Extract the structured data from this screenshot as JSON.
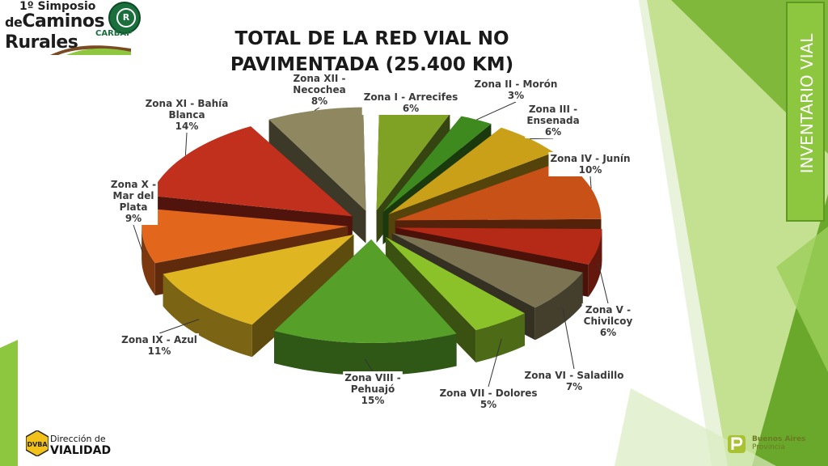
{
  "slide": {
    "event_logo": {
      "line1": "1º Simposio",
      "line2_prefix": "de",
      "line2_main": "Caminos",
      "line3": "Rurales",
      "badge_text": "CARBAP",
      "badge_mark": "R"
    },
    "side_tab": "INVENTARIO VIAL",
    "footer_left": {
      "line1": "Dirección de",
      "line2": "VIALIDAD",
      "mark": "DVBA"
    },
    "footer_right": {
      "line1": "Buenos Aires",
      "line2": "Provincia"
    }
  },
  "colors": {
    "accent_green": "#8dc63f",
    "dark_green": "#5e9a22"
  },
  "chart_data": {
    "type": "pie",
    "title": "TOTAL DE LA RED VIAL NO PAVIMENTADA (25.400 KM)",
    "title_lines": [
      "TOTAL DE LA RED VIAL NO",
      "PAVIMENTADA (25.400 KM)"
    ],
    "style": "3d-exploded",
    "series": [
      {
        "label_lines": [
          "Zona I - Arrecifes"
        ],
        "value": 6,
        "pct": "6%",
        "color": "#7fa225"
      },
      {
        "label_lines": [
          "Zona II - Morón"
        ],
        "value": 3,
        "pct": "3%",
        "color": "#3f8a1e"
      },
      {
        "label_lines": [
          "Zona III -",
          "Ensenada"
        ],
        "value": 6,
        "pct": "6%",
        "color": "#c9a017"
      },
      {
        "label_lines": [
          "Zona IV - Junín"
        ],
        "value": 10,
        "pct": "10%",
        "color": "#c85117"
      },
      {
        "label_lines": [
          "Zona V -",
          "Chivilcoy"
        ],
        "value": 6,
        "pct": "6%",
        "color": "#b52a16"
      },
      {
        "label_lines": [
          "Zona VI - Saladillo"
        ],
        "value": 7,
        "pct": "7%",
        "color": "#7b7352"
      },
      {
        "label_lines": [
          "Zona VII - Dolores"
        ],
        "value": 5,
        "pct": "5%",
        "color": "#8cc229"
      },
      {
        "label_lines": [
          "Zona VIII -",
          "Pehuajó"
        ],
        "value": 15,
        "pct": "15%",
        "color": "#56a02a"
      },
      {
        "label_lines": [
          "Zona IX - Azul"
        ],
        "value": 11,
        "pct": "11%",
        "color": "#e0b522"
      },
      {
        "label_lines": [
          "Zona X -",
          "Mar del",
          "Plata"
        ],
        "value": 9,
        "pct": "9%",
        "color": "#e2661c"
      },
      {
        "label_lines": [
          "Zona XI - Bahía",
          "Blanca"
        ],
        "value": 14,
        "pct": "14%",
        "color": "#c0301c"
      },
      {
        "label_lines": [
          "Zona XII -",
          "Necochea"
        ],
        "value": 8,
        "pct": "8%",
        "color": "#8f8760"
      }
    ]
  }
}
